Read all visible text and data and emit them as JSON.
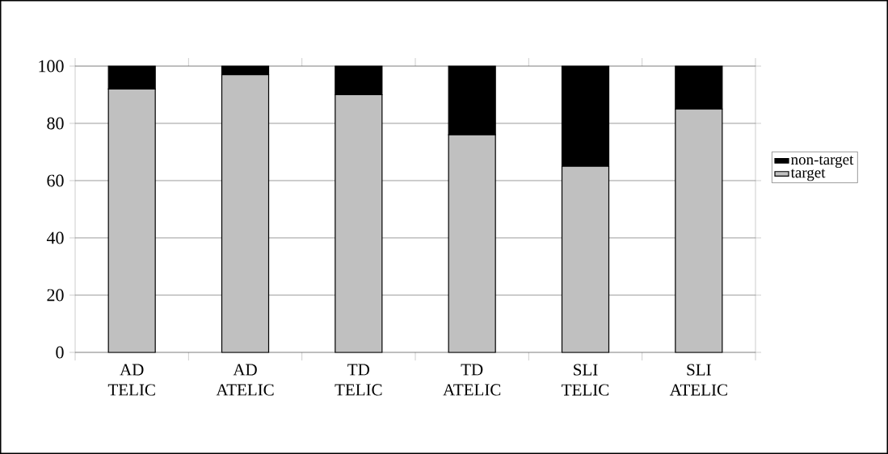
{
  "chart_data": {
    "type": "bar",
    "stacked": true,
    "categories": [
      "AD TELIC",
      "AD ATELIC",
      "TD TELIC",
      "TD ATELIC",
      "SLI TELIC",
      "SLI ATELIC"
    ],
    "series": [
      {
        "name": "target",
        "color": "#c0c0c0",
        "values": [
          92,
          97,
          90,
          76,
          65,
          85
        ]
      },
      {
        "name": "non-target",
        "color": "#000000",
        "values": [
          8,
          3,
          10,
          24,
          35,
          15
        ]
      }
    ],
    "ylim": [
      0,
      100
    ],
    "yticks": [
      0,
      20,
      40,
      60,
      80,
      100
    ],
    "grid": "y",
    "legend": "right"
  }
}
